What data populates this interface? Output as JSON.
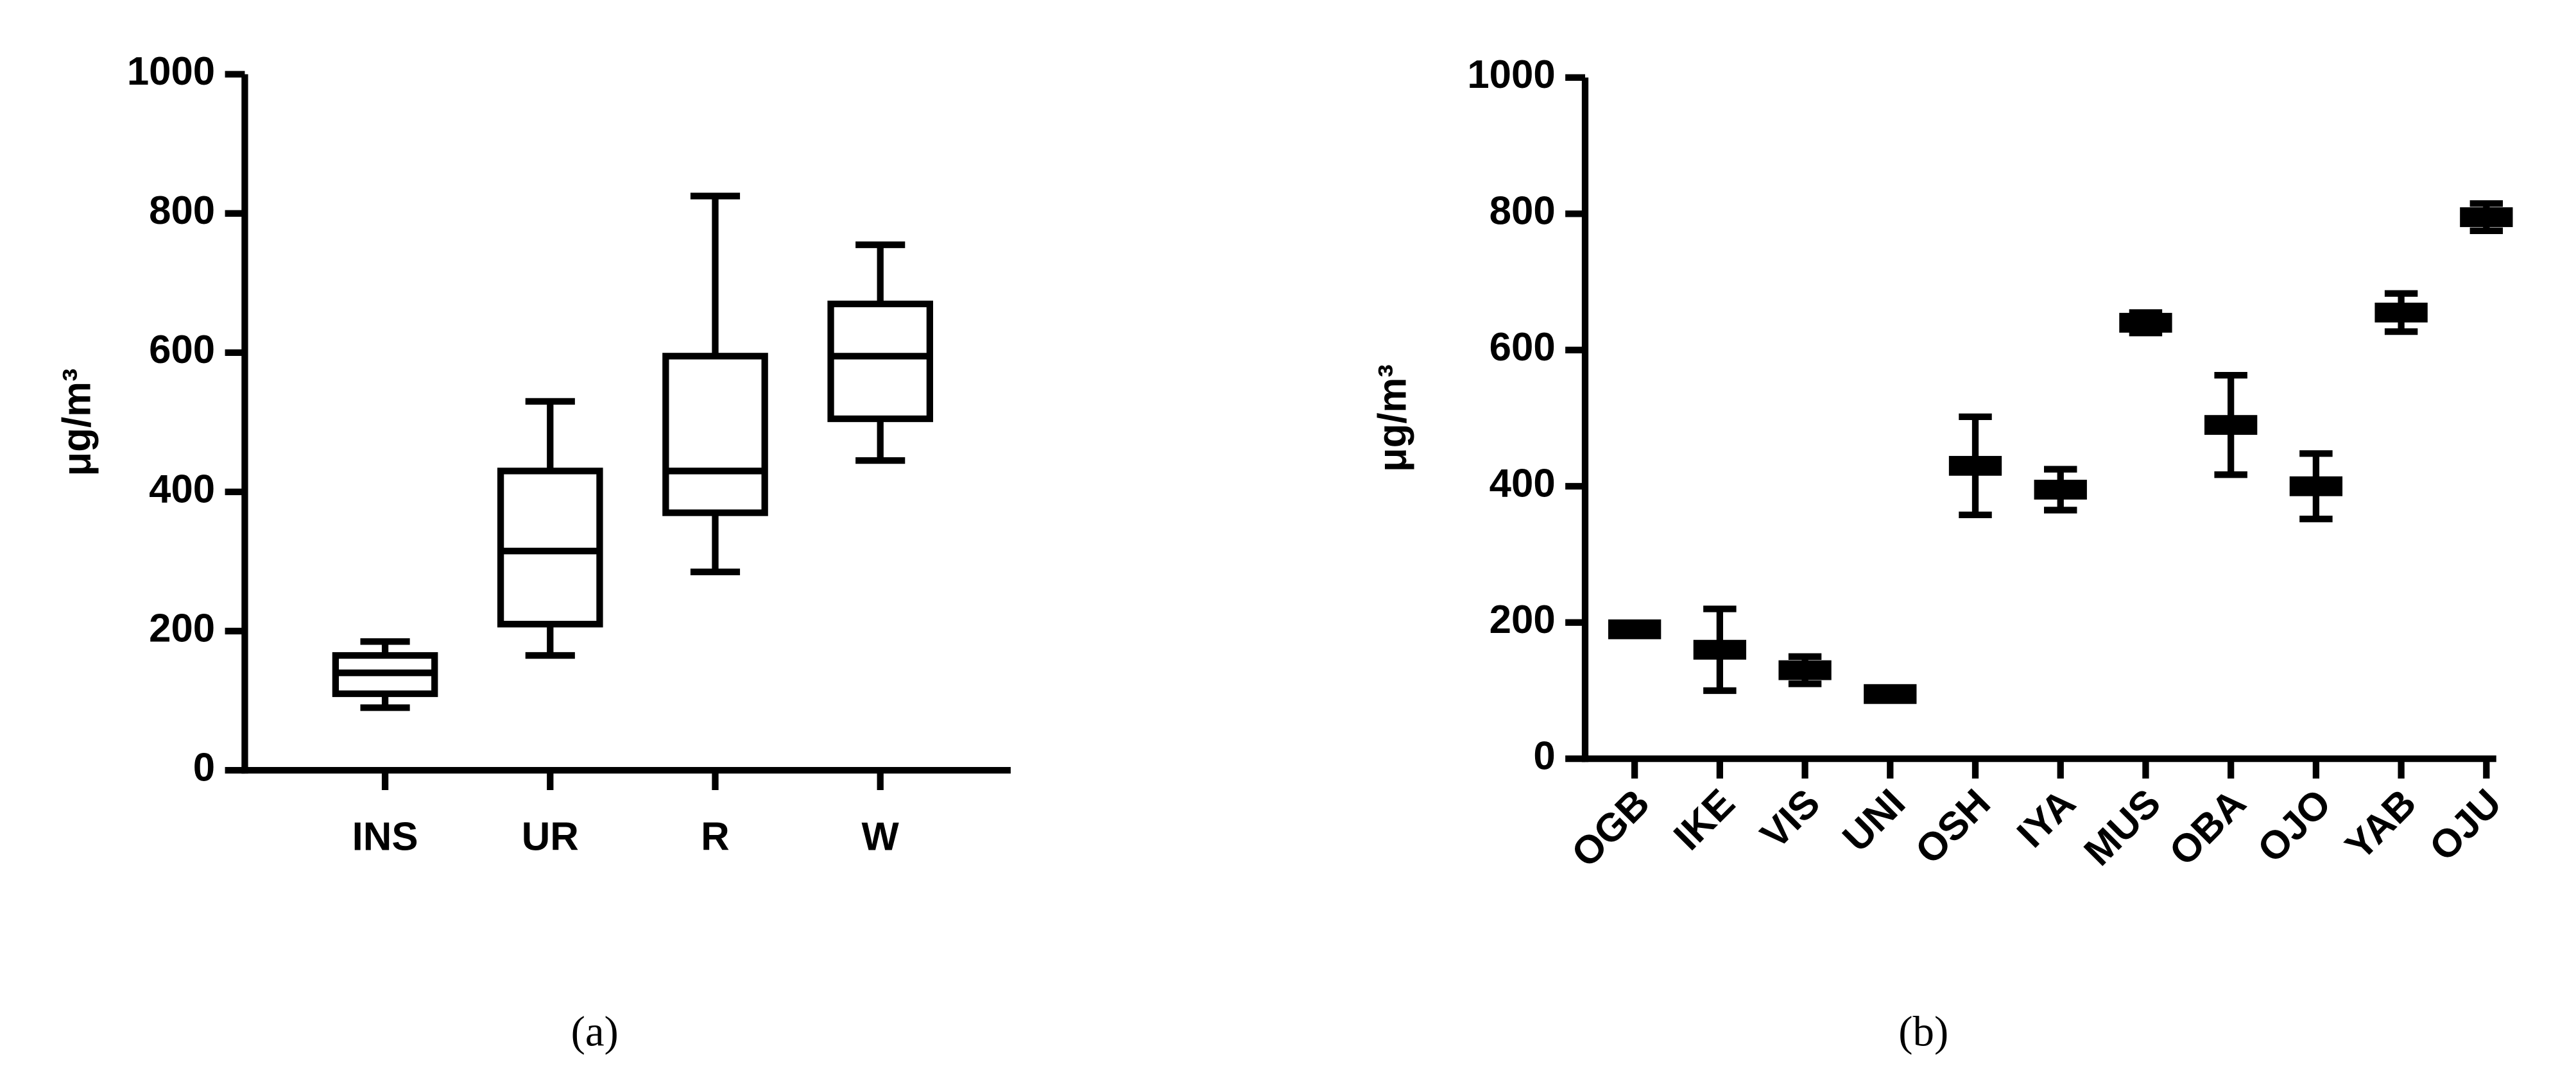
{
  "chart_data": [
    {
      "type": "box",
      "caption": "(a)",
      "ylabel": "μg/m³",
      "categories": [
        "INS",
        "UR",
        "R",
        "W"
      ],
      "values": [
        {
          "min": 90,
          "q1": 110,
          "median": 140,
          "q3": 165,
          "max": 185
        },
        {
          "min": 165,
          "q1": 210,
          "median": 315,
          "q3": 430,
          "max": 530
        },
        {
          "min": 285,
          "q1": 370,
          "median": 430,
          "q3": 595,
          "max": 825
        },
        {
          "min": 445,
          "q1": 505,
          "median": 595,
          "q3": 670,
          "max": 755
        }
      ],
      "color": "#000000",
      "ylim": [
        0,
        1000
      ],
      "yticks": [
        0,
        200,
        400,
        600,
        800,
        1000
      ]
    },
    {
      "type": "errorbar",
      "caption": "(b)",
      "ylabel": "μg/m³",
      "categories": [
        "OGB",
        "IKE",
        "VIS",
        "UNI",
        "OSH",
        "IYA",
        "MUS",
        "OBA",
        "OJO",
        "YAB",
        "OJU"
      ],
      "values": [
        190,
        160,
        130,
        95,
        430,
        395,
        640,
        490,
        400,
        655,
        795
      ],
      "errors": [
        8,
        60,
        20,
        5,
        72,
        30,
        15,
        73,
        48,
        28,
        20
      ],
      "color": "#000000",
      "ylim": [
        0,
        1000
      ],
      "yticks": [
        0,
        200,
        400,
        600,
        800,
        1000
      ]
    }
  ]
}
